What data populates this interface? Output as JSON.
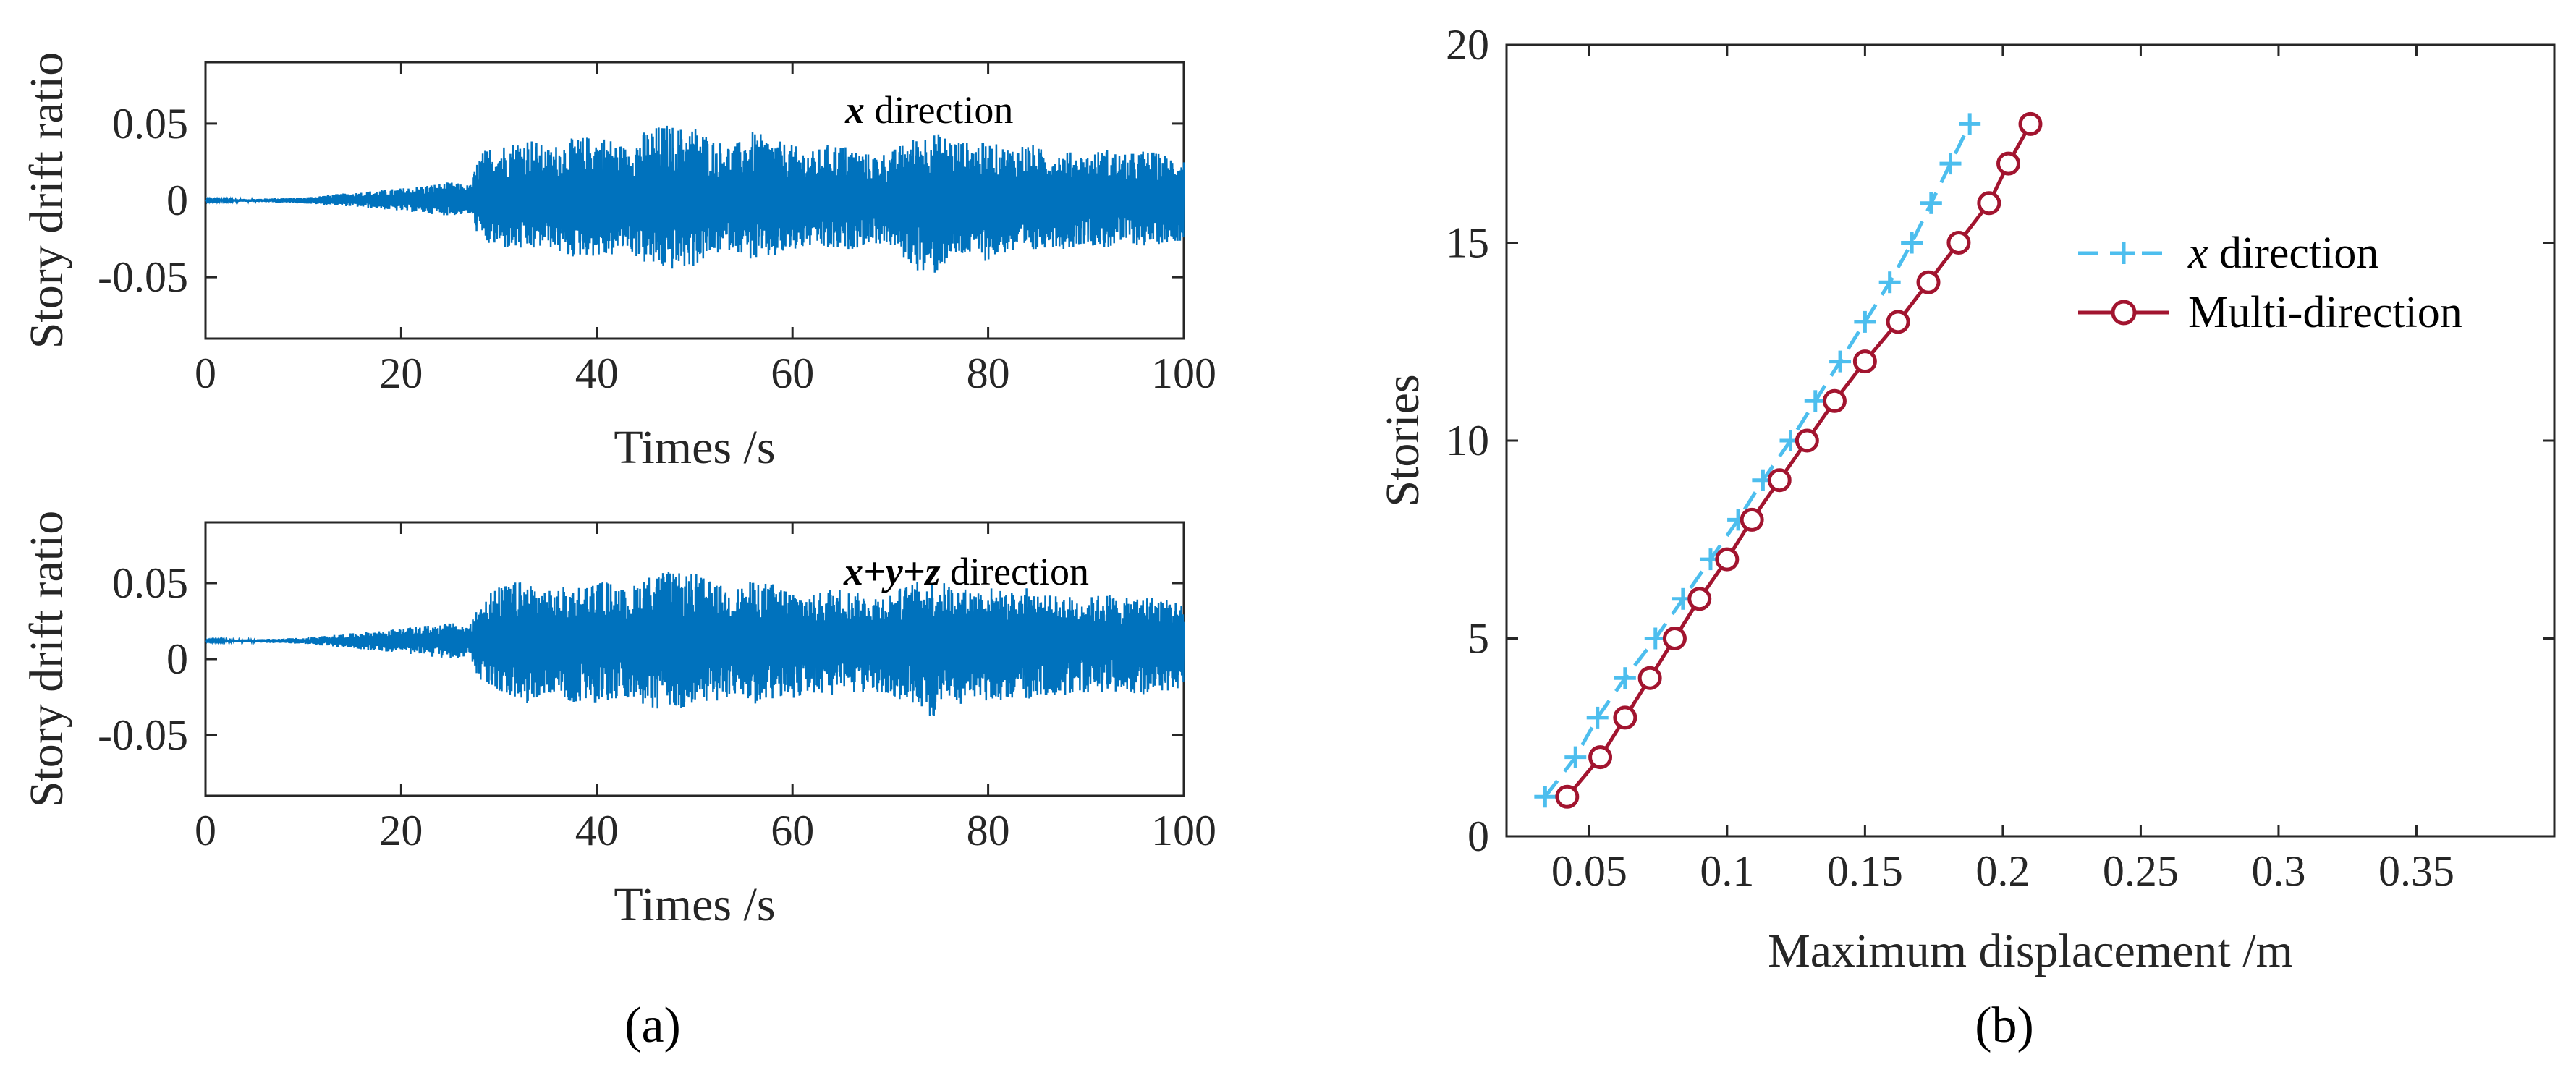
{
  "figure": {
    "panel_a_label": "(a)",
    "panel_b_label": "(b)"
  },
  "chart_data": [
    {
      "id": "a-top",
      "type": "line",
      "xlabel": "Times /s",
      "ylabel": "Story drift ratio",
      "xlim": [
        0,
        100
      ],
      "ylim": [
        -0.09,
        0.09
      ],
      "xticks": [
        0,
        20,
        40,
        60,
        80,
        100
      ],
      "xtick_labels": [
        "0",
        "20",
        "40",
        "60",
        "80",
        "100"
      ],
      "yticks": [
        -0.05,
        0,
        0.05
      ],
      "ytick_labels": [
        "-0.05",
        "0",
        "0.05"
      ],
      "annotation": {
        "var": "x",
        "rest": " direction"
      },
      "color": "#0072BD",
      "baseline": 0,
      "envelope": {
        "t": [
          0,
          5,
          10,
          15,
          20,
          25,
          27,
          28,
          29,
          31,
          33,
          35,
          37,
          39,
          41,
          43,
          45,
          47,
          49,
          50,
          52,
          54,
          56,
          58,
          60,
          62,
          64,
          66,
          68,
          70,
          72,
          74,
          76,
          78,
          80,
          82,
          84,
          86,
          88,
          90,
          92,
          94,
          96,
          98,
          100
        ],
        "upper": [
          0.0005,
          0.001,
          0.002,
          0.005,
          0.008,
          0.012,
          0.01,
          0.03,
          0.035,
          0.038,
          0.042,
          0.034,
          0.04,
          0.042,
          0.042,
          0.035,
          0.046,
          0.05,
          0.047,
          0.049,
          0.04,
          0.036,
          0.045,
          0.04,
          0.036,
          0.032,
          0.038,
          0.035,
          0.03,
          0.032,
          0.04,
          0.045,
          0.042,
          0.038,
          0.038,
          0.035,
          0.038,
          0.032,
          0.032,
          0.03,
          0.034,
          0.03,
          0.033,
          0.03,
          0.028
        ],
        "lower": [
          -0.0005,
          -0.001,
          -0.002,
          -0.004,
          -0.007,
          -0.01,
          -0.009,
          -0.025,
          -0.03,
          -0.032,
          -0.034,
          -0.03,
          -0.038,
          -0.036,
          -0.038,
          -0.032,
          -0.042,
          -0.046,
          -0.045,
          -0.043,
          -0.036,
          -0.032,
          -0.04,
          -0.038,
          -0.034,
          -0.03,
          -0.034,
          -0.032,
          -0.028,
          -0.03,
          -0.042,
          -0.052,
          -0.04,
          -0.036,
          -0.04,
          -0.034,
          -0.038,
          -0.03,
          -0.032,
          -0.028,
          -0.032,
          -0.028,
          -0.03,
          -0.028,
          -0.026
        ]
      }
    },
    {
      "id": "a-bottom",
      "type": "line",
      "xlabel": "Times /s",
      "ylabel": "Story drift ratio",
      "xlim": [
        0,
        100
      ],
      "ylim": [
        -0.09,
        0.09
      ],
      "xticks": [
        0,
        20,
        40,
        60,
        80,
        100
      ],
      "xtick_labels": [
        "0",
        "20",
        "40",
        "60",
        "80",
        "100"
      ],
      "yticks": [
        -0.05,
        0,
        0.05
      ],
      "ytick_labels": [
        "-0.05",
        "0",
        "0.05"
      ],
      "annotation": {
        "var": "x+y+z",
        "rest": " direction"
      },
      "color": "#0072BD",
      "baseline": 0.012,
      "envelope": {
        "t": [
          0,
          5,
          10,
          15,
          20,
          25,
          27,
          28,
          29,
          31,
          33,
          35,
          37,
          39,
          41,
          43,
          45,
          47,
          49,
          50,
          52,
          54,
          56,
          58,
          60,
          62,
          64,
          66,
          68,
          70,
          72,
          74,
          76,
          78,
          80,
          82,
          84,
          86,
          88,
          90,
          92,
          94,
          96,
          98,
          100
        ],
        "upper": [
          0.0125,
          0.013,
          0.014,
          0.017,
          0.02,
          0.024,
          0.022,
          0.038,
          0.045,
          0.05,
          0.052,
          0.045,
          0.048,
          0.05,
          0.052,
          0.045,
          0.055,
          0.058,
          0.056,
          0.057,
          0.05,
          0.046,
          0.052,
          0.05,
          0.046,
          0.042,
          0.048,
          0.045,
          0.042,
          0.044,
          0.05,
          0.052,
          0.05,
          0.046,
          0.048,
          0.044,
          0.047,
          0.042,
          0.042,
          0.04,
          0.044,
          0.04,
          0.042,
          0.04,
          0.038
        ],
        "lower": [
          0.0115,
          0.011,
          0.01,
          0.007,
          0.004,
          0.0,
          0.002,
          -0.015,
          -0.02,
          -0.025,
          -0.03,
          -0.022,
          -0.028,
          -0.03,
          -0.032,
          -0.025,
          -0.033,
          -0.035,
          -0.034,
          -0.033,
          -0.028,
          -0.025,
          -0.03,
          -0.028,
          -0.026,
          -0.022,
          -0.026,
          -0.024,
          -0.022,
          -0.025,
          -0.03,
          -0.04,
          -0.032,
          -0.028,
          -0.03,
          -0.026,
          -0.028,
          -0.024,
          -0.024,
          -0.022,
          -0.024,
          -0.022,
          -0.024,
          -0.022,
          -0.02
        ]
      }
    },
    {
      "id": "b",
      "type": "line",
      "xlabel": "Maximum displacement /m",
      "ylabel": "Stories",
      "xlim": [
        0.02,
        0.4
      ],
      "ylim": [
        0,
        20
      ],
      "xticks": [
        0.05,
        0.1,
        0.15,
        0.2,
        0.25,
        0.3,
        0.35
      ],
      "xtick_labels": [
        "0.05",
        "0.1",
        "0.15",
        "0.2",
        "0.25",
        "0.3",
        "0.35"
      ],
      "yticks": [
        0,
        5,
        10,
        15,
        20
      ],
      "ytick_labels": [
        "0",
        "5",
        "10",
        "15",
        "20"
      ],
      "legend_placement": "upper-right",
      "series": [
        {
          "var": "x",
          "rest": " direction",
          "color": "#4DBEEE",
          "marker": "plus",
          "linestyle": "dashed",
          "y": [
            1,
            2,
            3,
            4,
            5,
            6,
            7,
            8,
            9,
            10,
            11,
            12,
            13,
            14,
            15,
            16,
            17,
            18
          ],
          "x": [
            0.034,
            0.045,
            0.053,
            0.063,
            0.074,
            0.084,
            0.094,
            0.104,
            0.113,
            0.123,
            0.132,
            0.141,
            0.15,
            0.159,
            0.167,
            0.174,
            0.181,
            0.188
          ]
        },
        {
          "name": "Multi-direction",
          "color": "#A2142F",
          "marker": "circle",
          "linestyle": "solid",
          "y": [
            1,
            2,
            3,
            4,
            5,
            6,
            7,
            8,
            9,
            10,
            11,
            12,
            13,
            14,
            15,
            16,
            17,
            18
          ],
          "x": [
            0.042,
            0.054,
            0.063,
            0.072,
            0.081,
            0.09,
            0.1,
            0.109,
            0.119,
            0.129,
            0.139,
            0.15,
            0.162,
            0.173,
            0.184,
            0.195,
            0.202,
            0.21
          ]
        }
      ]
    }
  ]
}
